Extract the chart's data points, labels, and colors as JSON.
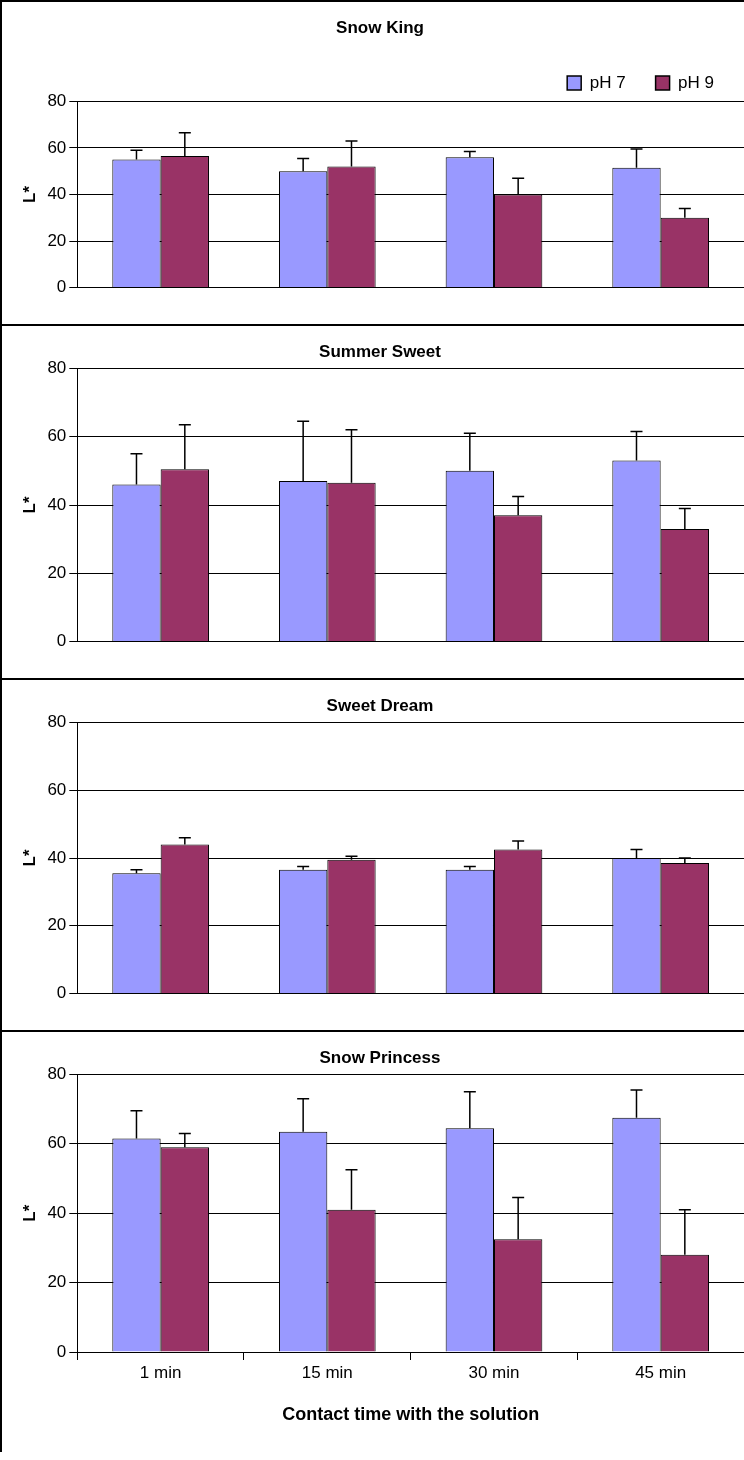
{
  "chart_data": [
    {
      "type": "bar",
      "title": "Snow King",
      "ylabel": "L*",
      "categories": [
        null,
        null,
        null,
        null
      ],
      "ylim": [
        0,
        80
      ],
      "yticks": [
        0,
        20,
        40,
        60,
        80
      ],
      "grid": "y",
      "legend": "top right",
      "series": [
        {
          "name": "pH 7",
          "color": "#9999ff",
          "values": [
            55,
            50,
            56,
            51.5
          ],
          "errors": [
            [
              55,
              59
            ],
            [
              50,
              55.5
            ],
            [
              56,
              58.5
            ],
            [
              51.5,
              59.5
            ]
          ]
        },
        {
          "name": "pH 9",
          "color": "#993366",
          "values": [
            56.5,
            52,
            40,
            30
          ],
          "errors": [
            [
              56.5,
              66.5
            ],
            [
              52,
              63
            ],
            [
              40,
              47
            ],
            [
              30,
              34
            ]
          ]
        }
      ]
    },
    {
      "type": "bar",
      "title": "Summer Sweet",
      "ylabel": "L*",
      "categories": [
        null,
        null,
        null,
        null
      ],
      "ylim": [
        0,
        80
      ],
      "yticks": [
        0,
        20,
        40,
        60,
        80
      ],
      "grid": "y",
      "series": [
        {
          "color": "#9999ff",
          "values": [
            46,
            47,
            50,
            53
          ],
          "errors": [
            [
              46,
              55
            ],
            [
              47,
              64.5
            ],
            [
              50,
              61
            ],
            [
              53,
              61.5
            ]
          ]
        },
        {
          "color": "#993366",
          "values": [
            50.5,
            46.5,
            37,
            33
          ],
          "errors": [
            [
              50.5,
              63.5
            ],
            [
              46.5,
              62
            ],
            [
              37,
              42.5
            ],
            [
              33,
              39
            ]
          ]
        }
      ]
    },
    {
      "type": "bar",
      "title": "Sweet Dream",
      "ylabel": "L*",
      "categories": [
        null,
        null,
        null,
        null
      ],
      "ylim": [
        0,
        80
      ],
      "yticks": [
        0,
        20,
        40,
        60,
        80
      ],
      "grid": "y",
      "series": [
        {
          "color": "#9999ff",
          "values": [
            35.5,
            36.5,
            36.5,
            40
          ],
          "errors": [
            [
              35.5,
              36.5
            ],
            [
              36.5,
              37.5
            ],
            [
              36.5,
              37.5
            ],
            [
              40,
              42.5
            ]
          ]
        },
        {
          "color": "#993366",
          "values": [
            44,
            39.5,
            42.5,
            38.5
          ],
          "errors": [
            [
              44,
              46
            ],
            [
              39.5,
              40.5
            ],
            [
              42.5,
              45
            ],
            [
              38.5,
              40
            ]
          ]
        }
      ]
    },
    {
      "type": "bar",
      "title": "Snow Princess",
      "xlabel": "Contact time with the solution",
      "ylabel": "L*",
      "categories": [
        "1 min",
        "15 min",
        "30 min",
        "45 min"
      ],
      "ylim": [
        0,
        80
      ],
      "yticks": [
        0,
        20,
        40,
        60,
        80
      ],
      "grid": "y",
      "series": [
        {
          "color": "#9999ff",
          "values": [
            61.5,
            63.5,
            64.5,
            67.5
          ],
          "errors": [
            [
              61.5,
              69.5
            ],
            [
              63.5,
              73
            ],
            [
              64.5,
              75
            ],
            [
              67.5,
              75.5
            ]
          ]
        },
        {
          "color": "#993366",
          "values": [
            59,
            41,
            32.5,
            28
          ],
          "errors": [
            [
              59,
              63
            ],
            [
              41,
              52.5
            ],
            [
              32.5,
              44.5
            ],
            [
              28,
              41
            ]
          ]
        }
      ]
    }
  ]
}
